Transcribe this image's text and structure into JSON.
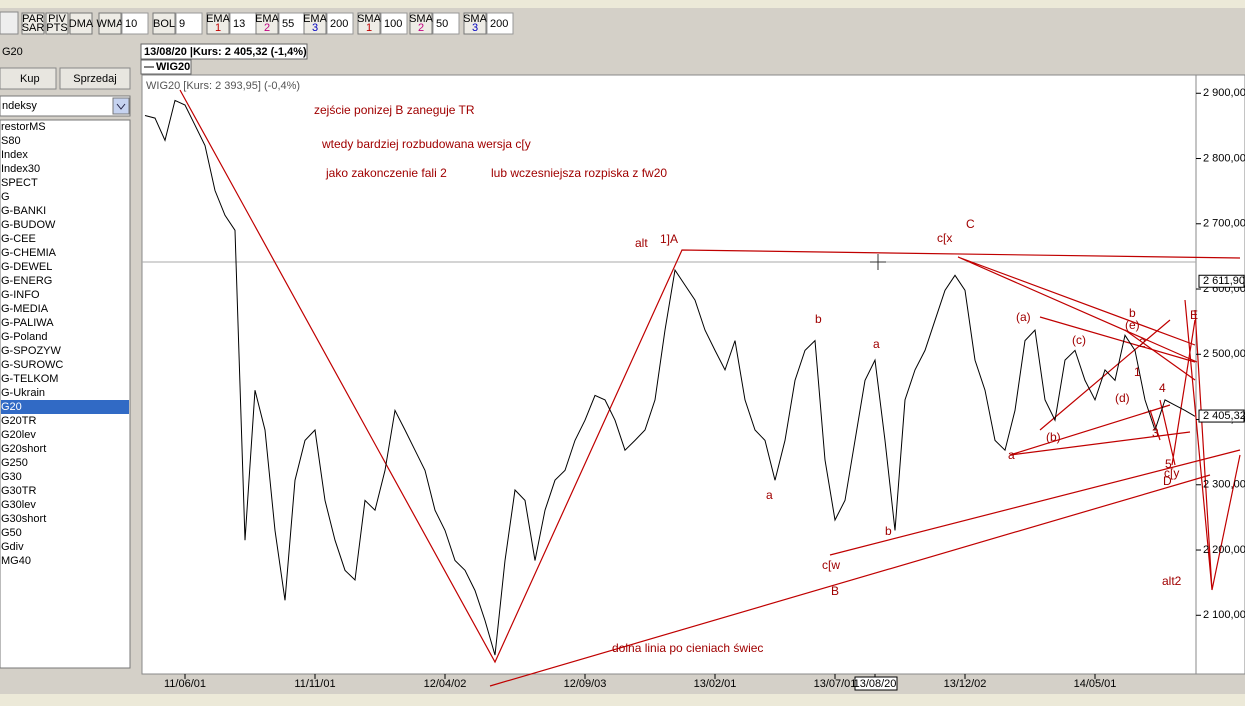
{
  "toolbar": {
    "buttons": [
      {
        "top": "PAR",
        "bottom": "SAR"
      },
      {
        "top": "PIV",
        "bottom": "PTS"
      },
      {
        "top": "DMA"
      },
      {
        "top": "WMA",
        "value": "10"
      },
      {
        "top": "BOL",
        "value": "9"
      },
      {
        "top": "EMA",
        "bottom": "1",
        "value": "13"
      },
      {
        "top": "EMA",
        "bottom": "2",
        "value": "55"
      },
      {
        "top": "EMA",
        "bottom": "3",
        "value": "200"
      },
      {
        "top": "SMA",
        "bottom": "1",
        "value": "100"
      },
      {
        "top": "SMA",
        "bottom": "2",
        "value": "50"
      },
      {
        "top": "SMA",
        "bottom": "3",
        "value": "200"
      }
    ]
  },
  "sidebar": {
    "title": "G20",
    "buy": "Kup",
    "sell": "Sprzedaj",
    "dropdown": "ndeksy",
    "items": [
      "restorMS",
      "S80",
      "Index",
      "Index30",
      "SPECT",
      "G",
      "G-BANKI",
      "G-BUDOW",
      "G-CEE",
      "G-CHEMIA",
      "G-DEWEL",
      "G-ENERG",
      "G-INFO",
      "G-MEDIA",
      "G-PALIWA",
      "G-Poland",
      "G-SPOZYW",
      "G-SUROWC",
      "G-TELKOM",
      "G-Ukrain",
      "G20",
      "G20TR",
      "G20lev",
      "G20short",
      "G250",
      "G30",
      "G30TR",
      "G30lev",
      "G30short",
      "G50",
      "Gdiv",
      "MG40"
    ],
    "selected": 20
  },
  "chart_data": {
    "type": "line",
    "title": "13/08/20 |Kurs: 2 405,32 (-1,4%)",
    "tab": "WIG20",
    "legend_text": "WIG20 [Kurs: 2 393,95] (-0,4%)",
    "categories": [
      null,
      null,
      null,
      null,
      "11/06/01",
      null,
      null,
      null,
      null,
      null,
      null,
      null,
      null,
      null,
      null,
      null,
      null,
      "11/11/01",
      null,
      null,
      null,
      null,
      null,
      null,
      null,
      null,
      null,
      null,
      null,
      null,
      "12/04/02",
      null,
      null,
      null,
      null,
      null,
      null,
      null,
      null,
      null,
      null,
      null,
      null,
      null,
      "12/09/03",
      null,
      null,
      null,
      null,
      null,
      null,
      null,
      null,
      null,
      null,
      null,
      null,
      "13/02/01",
      null,
      null,
      null,
      null,
      null,
      null,
      null,
      null,
      null,
      null,
      null,
      "13/07/01",
      null,
      null,
      null,
      "13/08/20",
      null,
      null,
      null,
      null,
      null,
      null,
      null,
      null,
      "13/12/02",
      null,
      null,
      null,
      null,
      null,
      null,
      null,
      null,
      null,
      null,
      null,
      null,
      "14/05/01",
      null,
      null,
      null,
      null,
      null,
      null,
      null,
      null,
      null,
      null
    ],
    "highlighted_category": 73,
    "series": [
      {
        "name": "WIG20",
        "color": "#000000",
        "values": [
          2866,
          2862,
          2828,
          2889,
          2882,
          2851,
          2820,
          2751,
          2713,
          2690,
          2215,
          2445,
          2384,
          2230,
          2123,
          2307,
          2368,
          2384,
          2276,
          2215,
          2169,
          2154,
          2276,
          2261,
          2322,
          2414,
          2384,
          2353,
          2322,
          2261,
          2230,
          2184,
          2169,
          2138,
          2092,
          2039,
          2184,
          2292,
          2276,
          2184,
          2261,
          2307,
          2322,
          2368,
          2399,
          2437,
          2430,
          2399,
          2353,
          2368,
          2384,
          2430,
          2537,
          2629,
          2606,
          2583,
          2537,
          2506,
          2476,
          2521,
          2430,
          2384,
          2368,
          2307,
          2368,
          2460,
          2506,
          2521,
          2338,
          2246,
          2276,
          2368,
          2460,
          2491,
          2368,
          2230,
          2430,
          2476,
          2506,
          2552,
          2598,
          2621,
          2598,
          2491,
          2445,
          2368,
          2353,
          2414,
          2521,
          2537,
          2430,
          2399,
          2491,
          2506,
          2460,
          2430,
          2476,
          2460,
          2529,
          2506,
          2430,
          2384,
          2430,
          2422,
          2414,
          2405
        ]
      }
    ],
    "ylim": [
      2010,
      2928
    ],
    "yticks": [
      {
        "value": 2100,
        "label": "2 100,00"
      },
      {
        "value": 2200,
        "label": "2 200,00"
      },
      {
        "value": 2300,
        "label": "2 300,00"
      },
      {
        "value": 2400,
        "label": "2 400,00"
      },
      {
        "value": 2500,
        "label": "2 500,00"
      },
      {
        "value": 2600,
        "label": "2 600,00"
      },
      {
        "value": 2700,
        "label": "2 700,00"
      },
      {
        "value": 2800,
        "label": "2 800,00"
      },
      {
        "value": 2900,
        "label": "2 900,00"
      }
    ],
    "price_marker": {
      "value": 2405.32,
      "label": "2 405,32"
    },
    "level_marker": {
      "value": 2611.9,
      "label": "2 611,90"
    },
    "annotations": [
      "zejście ponizej B zaneguje TR",
      "wtedy bardziej rozbudowana wersja c[y",
      "jako zakonczenie fali 2",
      "lub wczesniejsza rozpiska z fw20",
      "alt",
      "1]A",
      "c[x",
      "C",
      "b",
      "a",
      "a",
      "b",
      "c[w",
      "B",
      "(a)",
      "b",
      "(e)",
      "(c)",
      "2",
      "1",
      "(d)",
      "4",
      "(b)",
      "a",
      "3",
      "5",
      "c[y",
      "D",
      "alt2",
      "dolna linia po cieniach świec",
      "E"
    ]
  }
}
